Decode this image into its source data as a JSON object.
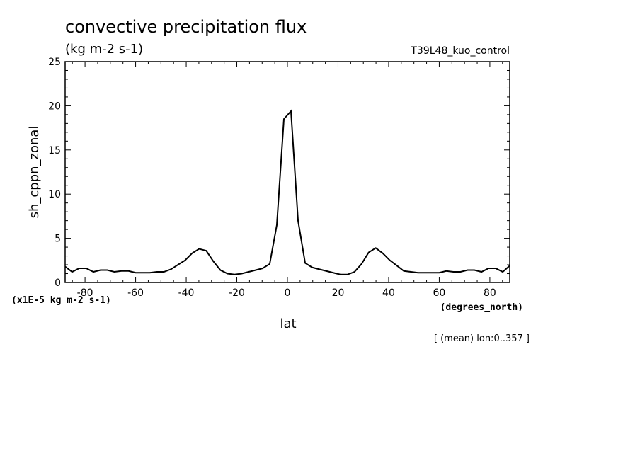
{
  "chart_data": {
    "type": "line",
    "title": "convective precipitation flux",
    "subtitle": "(kg m-2 s-1)",
    "experiment": "T39L48_kuo_control",
    "xlabel": "lat",
    "xunits": "(degrees_north)",
    "ylabel": "sh_cppn_zonal",
    "yunits": "(x1E-5 kg m-2 s-1)",
    "footnote": "[ (mean) lon:0..357 ]",
    "xlim": [
      -87.86,
      87.86
    ],
    "ylim": [
      0,
      25
    ],
    "xticks": [
      -80,
      -60,
      -40,
      -20,
      0,
      20,
      40,
      60,
      80
    ],
    "xtick_labels": [
      "-80",
      "-60",
      "-40",
      "-20",
      "0",
      "20",
      "40",
      "60",
      "80"
    ],
    "yticks": [
      0,
      5,
      10,
      15,
      20,
      25
    ],
    "ytick_labels": [
      "0",
      "5",
      "10",
      "15",
      "20",
      "25"
    ],
    "grid": false,
    "series": [
      {
        "x": [
          -87.86,
          -85.1,
          -82.3,
          -79.5,
          -76.7,
          -73.9,
          -71.2,
          -68.4,
          -65.6,
          -62.8,
          -60.0,
          -57.2,
          -54.4,
          -51.6,
          -48.8,
          -46.0,
          -43.3,
          -40.5,
          -37.7,
          -34.9,
          -32.1,
          -29.3,
          -26.5,
          -23.7,
          -20.9,
          -18.1,
          -15.3,
          -12.5,
          -9.8,
          -7.0,
          -4.2,
          -1.4,
          1.4,
          4.2,
          7.0,
          9.8,
          12.5,
          15.3,
          18.1,
          20.9,
          23.7,
          26.5,
          29.3,
          32.1,
          34.9,
          37.7,
          40.5,
          43.3,
          46.0,
          48.8,
          51.6,
          54.4,
          57.2,
          60.0,
          62.8,
          65.6,
          68.4,
          71.2,
          73.9,
          76.7,
          79.5,
          82.3,
          85.1,
          87.86
        ],
        "y": [
          1.8,
          1.2,
          1.6,
          1.6,
          1.2,
          1.4,
          1.4,
          1.2,
          1.3,
          1.3,
          1.1,
          1.1,
          1.1,
          1.2,
          1.2,
          1.5,
          2.0,
          2.5,
          3.3,
          3.8,
          3.6,
          2.4,
          1.4,
          1.0,
          0.9,
          1.0,
          1.2,
          1.4,
          1.6,
          2.1,
          6.5,
          18.5,
          19.4,
          7.0,
          2.2,
          1.7,
          1.5,
          1.3,
          1.1,
          0.9,
          0.9,
          1.2,
          2.1,
          3.4,
          3.9,
          3.3,
          2.5,
          1.9,
          1.3,
          1.2,
          1.1,
          1.1,
          1.1,
          1.1,
          1.3,
          1.2,
          1.2,
          1.4,
          1.4,
          1.2,
          1.6,
          1.6,
          1.2,
          1.9
        ]
      }
    ]
  }
}
